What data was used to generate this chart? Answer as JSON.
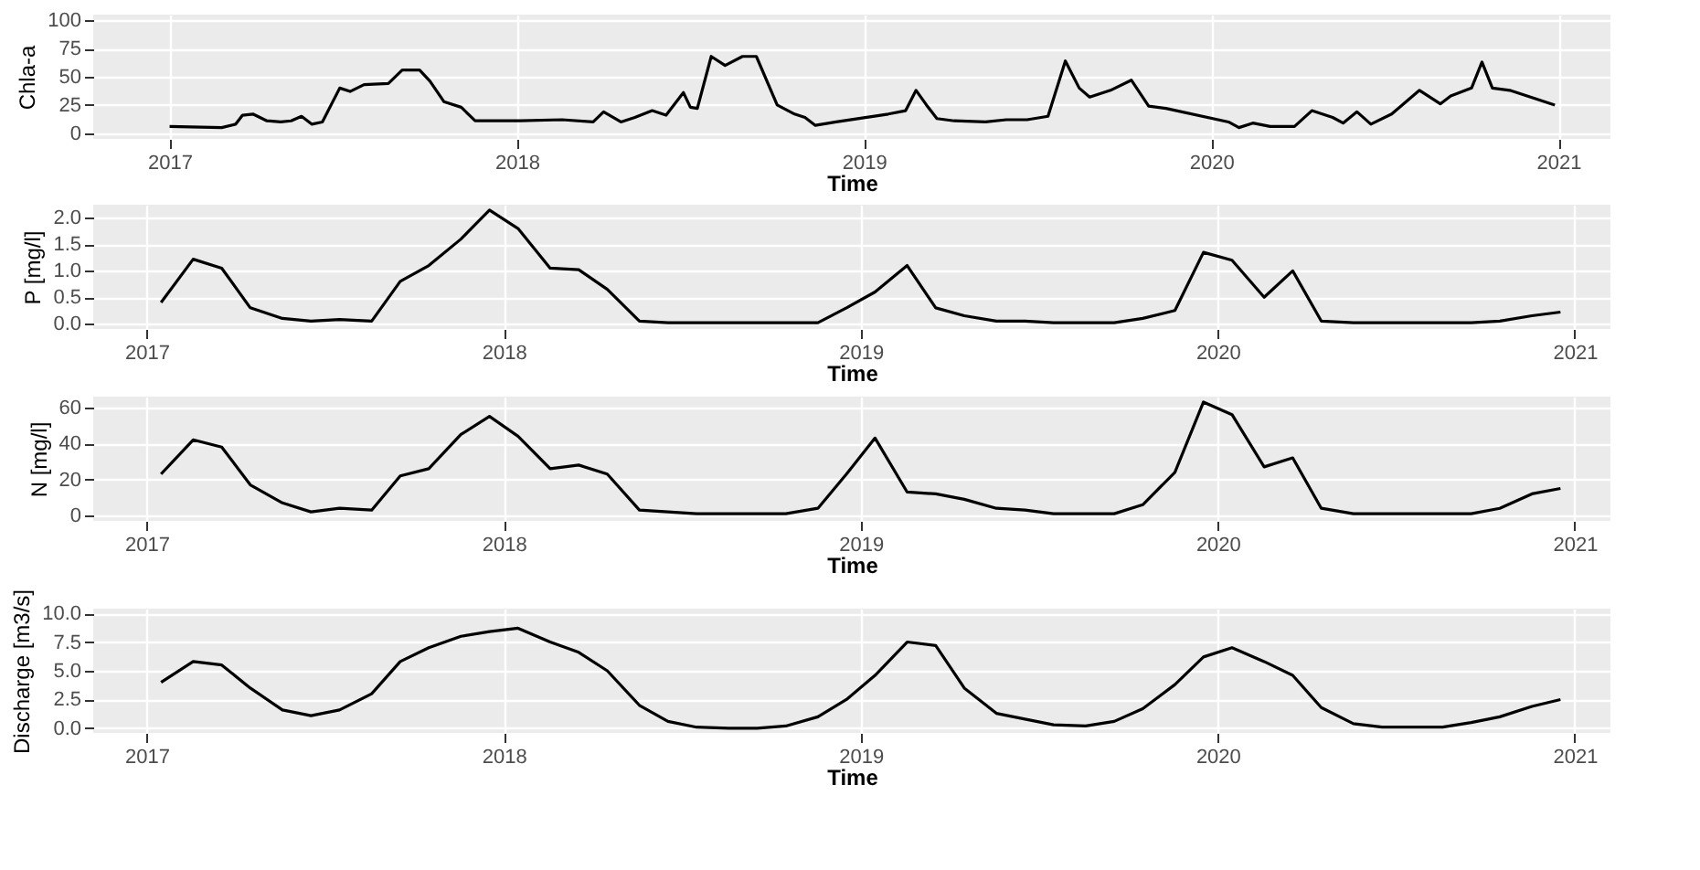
{
  "chart_data": [
    {
      "type": "line",
      "xlabel": "Time",
      "ylabel": "Chla-a",
      "xlim": [
        2016.78,
        2021.15
      ],
      "xticks": [
        2017,
        2018,
        2019,
        2020,
        2021
      ],
      "ylim": [
        -5,
        105
      ],
      "yticks": [
        0,
        25,
        50,
        75,
        100
      ],
      "grid": true,
      "series": [
        {
          "color": "#000000",
          "x": [
            2017.0,
            2017.15,
            2017.19,
            2017.21,
            2017.24,
            2017.28,
            2017.32,
            2017.35,
            2017.38,
            2017.41,
            2017.44,
            2017.49,
            2017.52,
            2017.56,
            2017.63,
            2017.67,
            2017.72,
            2017.75,
            2017.79,
            2017.84,
            2017.88,
            2018.01,
            2018.13,
            2018.22,
            2018.25,
            2018.3,
            2018.34,
            2018.39,
            2018.43,
            2018.48,
            2018.5,
            2018.52,
            2018.56,
            2018.6,
            2018.65,
            2018.69,
            2018.75,
            2018.8,
            2018.83,
            2018.86,
            2018.92,
            2019.07,
            2019.12,
            2019.15,
            2019.18,
            2019.21,
            2019.26,
            2019.35,
            2019.41,
            2019.47,
            2019.53,
            2019.58,
            2019.62,
            2019.65,
            2019.71,
            2019.77,
            2019.82,
            2019.87,
            2020.05,
            2020.08,
            2020.12,
            2020.17,
            2020.24,
            2020.29,
            2020.35,
            2020.38,
            2020.42,
            2020.46,
            2020.52,
            2020.6,
            2020.66,
            2020.69,
            2020.75,
            2020.78,
            2020.81,
            2020.86,
            2020.99
          ],
          "values": [
            6,
            5,
            8,
            16,
            17,
            11,
            10,
            11,
            15,
            8,
            10,
            40,
            37,
            43,
            44,
            56,
            56,
            46,
            28,
            23,
            11,
            11,
            12,
            10,
            19,
            10,
            14,
            20,
            16,
            36,
            23,
            22,
            68,
            60,
            68,
            68,
            25,
            17,
            14,
            7,
            10,
            17,
            20,
            38,
            25,
            13,
            11,
            10,
            12,
            12,
            15,
            64,
            40,
            32,
            38,
            47,
            24,
            22,
            10,
            5,
            9,
            6,
            6,
            20,
            14,
            9,
            19,
            8,
            17,
            38,
            26,
            33,
            40,
            63,
            40,
            38,
            25
          ]
        }
      ]
    },
    {
      "type": "line",
      "xlabel": "Time",
      "ylabel": "P [mg/l]",
      "xlim": [
        2016.85,
        2021.1
      ],
      "xticks": [
        2017,
        2018,
        2019,
        2020,
        2021
      ],
      "ylim": [
        -0.1,
        2.25
      ],
      "yticks": [
        {
          "value": 0,
          "label": "0.0"
        },
        {
          "value": 0.5,
          "label": "0.5"
        },
        {
          "value": 1,
          "label": "1.0"
        },
        {
          "value": 1.5,
          "label": "1.5"
        },
        {
          "value": 2,
          "label": "2.0"
        }
      ],
      "grid": true,
      "series": [
        {
          "color": "#000000",
          "x": [
            2017.04,
            2017.13,
            2017.21,
            2017.29,
            2017.38,
            2017.46,
            2017.54,
            2017.63,
            2017.71,
            2017.79,
            2017.88,
            2017.96,
            2018.04,
            2018.13,
            2018.21,
            2018.29,
            2018.38,
            2018.46,
            2018.54,
            2018.63,
            2018.71,
            2018.79,
            2018.88,
            2018.96,
            2019.04,
            2019.13,
            2019.21,
            2019.29,
            2019.38,
            2019.46,
            2019.54,
            2019.63,
            2019.71,
            2019.79,
            2019.88,
            2019.96,
            2020.04,
            2020.13,
            2020.21,
            2020.29,
            2020.38,
            2020.46,
            2020.54,
            2020.63,
            2020.71,
            2020.79,
            2020.88,
            2020.96
          ],
          "values": [
            0.4,
            1.22,
            1.05,
            0.3,
            0.1,
            0.05,
            0.08,
            0.05,
            0.8,
            1.1,
            1.6,
            2.15,
            1.8,
            1.05,
            1.02,
            0.65,
            0.05,
            0.02,
            0.02,
            0.02,
            0.02,
            0.02,
            0.02,
            0.3,
            0.6,
            1.1,
            0.3,
            0.15,
            0.05,
            0.05,
            0.02,
            0.02,
            0.02,
            0.1,
            0.25,
            1.35,
            1.2,
            0.5,
            1.0,
            0.05,
            0.02,
            0.02,
            0.02,
            0.02,
            0.02,
            0.05,
            0.15,
            0.22
          ]
        }
      ]
    },
    {
      "type": "line",
      "xlabel": "Time",
      "ylabel": "N [mg/l]",
      "xlim": [
        2016.85,
        2021.1
      ],
      "xticks": [
        2017,
        2018,
        2019,
        2020,
        2021
      ],
      "ylim": [
        -3,
        66
      ],
      "yticks": [
        0,
        20,
        40,
        60
      ],
      "grid": true,
      "series": [
        {
          "color": "#000000",
          "x": [
            2017.04,
            2017.13,
            2017.21,
            2017.29,
            2017.38,
            2017.46,
            2017.54,
            2017.63,
            2017.71,
            2017.79,
            2017.88,
            2017.96,
            2018.04,
            2018.13,
            2018.21,
            2018.29,
            2018.38,
            2018.46,
            2018.54,
            2018.63,
            2018.71,
            2018.79,
            2018.88,
            2018.96,
            2019.04,
            2019.13,
            2019.21,
            2019.29,
            2019.38,
            2019.46,
            2019.54,
            2019.63,
            2019.71,
            2019.79,
            2019.88,
            2019.96,
            2020.04,
            2020.13,
            2020.21,
            2020.29,
            2020.38,
            2020.46,
            2020.54,
            2020.63,
            2020.71,
            2020.79,
            2020.88,
            2020.96
          ],
          "values": [
            23,
            42,
            38,
            17,
            7,
            2,
            4,
            3,
            22,
            26,
            45,
            55,
            44,
            26,
            28,
            23,
            3,
            2,
            1,
            1,
            1,
            1,
            4,
            23,
            43,
            13,
            12,
            9,
            4,
            3,
            1,
            1,
            1,
            6,
            24,
            63,
            56,
            27,
            32,
            4,
            1,
            1,
            1,
            1,
            1,
            4,
            12,
            15
          ]
        }
      ]
    },
    {
      "type": "line",
      "xlabel": "Time",
      "ylabel": "Discharge [m3/s]",
      "xlim": [
        2016.85,
        2021.1
      ],
      "xticks": [
        2017,
        2018,
        2019,
        2020,
        2021
      ],
      "ylim": [
        -0.4,
        10.4
      ],
      "yticks": [
        {
          "value": 0,
          "label": "0.0"
        },
        {
          "value": 2.5,
          "label": "2.5"
        },
        {
          "value": 5,
          "label": "5.0"
        },
        {
          "value": 7.5,
          "label": "7.5"
        },
        {
          "value": 10,
          "label": "10.0"
        }
      ],
      "grid": true,
      "series": [
        {
          "color": "#000000",
          "x": [
            2017.04,
            2017.13,
            2017.21,
            2017.29,
            2017.38,
            2017.46,
            2017.54,
            2017.63,
            2017.71,
            2017.79,
            2017.88,
            2017.96,
            2018.04,
            2018.13,
            2018.21,
            2018.29,
            2018.38,
            2018.46,
            2018.54,
            2018.63,
            2018.71,
            2018.79,
            2018.88,
            2018.96,
            2019.04,
            2019.13,
            2019.21,
            2019.29,
            2019.38,
            2019.46,
            2019.54,
            2019.63,
            2019.71,
            2019.79,
            2019.88,
            2019.96,
            2020.04,
            2020.13,
            2020.21,
            2020.29,
            2020.38,
            2020.46,
            2020.54,
            2020.63,
            2020.71,
            2020.79,
            2020.88,
            2020.96
          ],
          "values": [
            4.0,
            5.8,
            5.5,
            3.5,
            1.6,
            1.1,
            1.6,
            3.0,
            5.8,
            7.0,
            8.0,
            8.4,
            8.7,
            7.5,
            6.6,
            5.0,
            2.0,
            0.6,
            0.1,
            0.0,
            0.0,
            0.2,
            1.0,
            2.5,
            4.6,
            7.5,
            7.2,
            3.5,
            1.3,
            0.8,
            0.3,
            0.2,
            0.6,
            1.7,
            3.8,
            6.2,
            7.0,
            5.8,
            4.6,
            1.8,
            0.4,
            0.1,
            0.1,
            0.1,
            0.5,
            1.0,
            1.9,
            2.5
          ]
        }
      ]
    }
  ]
}
